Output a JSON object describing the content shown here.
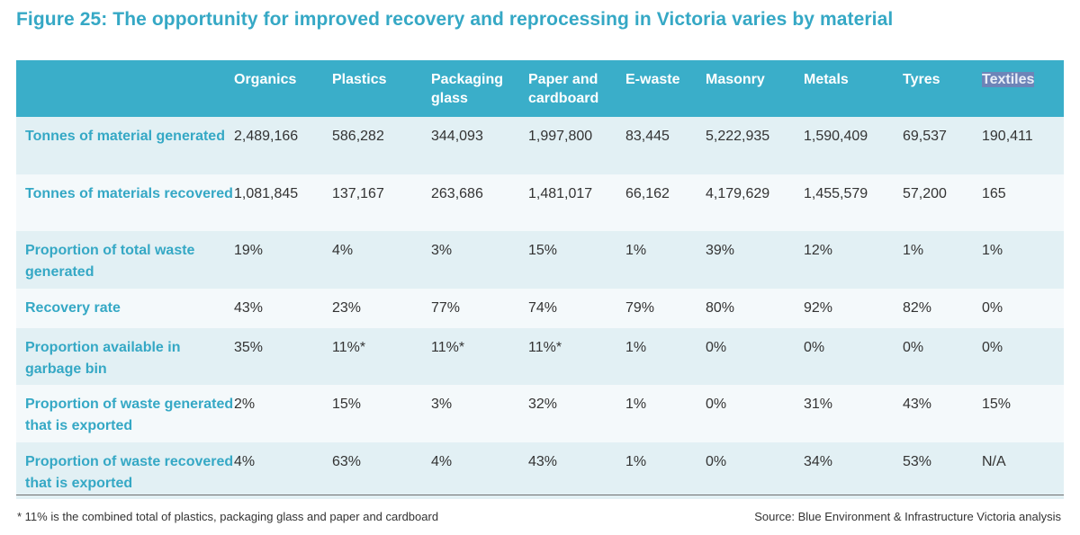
{
  "figure": {
    "title": "Figure 25: The opportunity for improved recovery and reprocessing in Victoria varies by material"
  },
  "table": {
    "columns": [
      "Organics",
      "Plastics",
      "Packaging glass",
      "Paper and cardboard",
      "E-waste",
      "Masonry",
      "Metals",
      "Tyres",
      "Textiles"
    ],
    "rows": [
      {
        "label": "Tonnes of material generated",
        "values": [
          "2,489,166",
          "586,282",
          "344,093",
          "1,997,800",
          "83,445",
          "5,222,935",
          "1,590,409",
          "69,537",
          "190,411"
        ]
      },
      {
        "label": "Tonnes of materials recovered",
        "values": [
          "1,081,845",
          "137,167",
          "263,686",
          "1,481,017",
          "66,162",
          "4,179,629",
          "1,455,579",
          "57,200",
          "165"
        ]
      },
      {
        "label": "Proportion of total waste generated",
        "values": [
          "19%",
          "4%",
          "3%",
          "15%",
          "1%",
          "39%",
          "12%",
          "1%",
          "1%"
        ]
      },
      {
        "label": "Recovery rate",
        "values": [
          "43%",
          "23%",
          "77%",
          "74%",
          "79%",
          "80%",
          "92%",
          "82%",
          "0%"
        ]
      },
      {
        "label": "Proportion available in garbage bin",
        "values": [
          "35%",
          "11%*",
          "11%*",
          "11%*",
          "1%",
          "0%",
          "0%",
          "0%",
          "0%"
        ]
      },
      {
        "label": "Proportion of waste generated that is exported",
        "values": [
          "2%",
          "15%",
          "3%",
          "32%",
          "1%",
          "0%",
          "31%",
          "43%",
          "15%"
        ]
      },
      {
        "label": "Proportion of waste recovered that is exported",
        "values": [
          "4%",
          "63%",
          "4%",
          "43%",
          "1%",
          "0%",
          "34%",
          "53%",
          "N/A"
        ]
      }
    ]
  },
  "footer": {
    "footnote": "* 11% is the combined total of plastics, packaging glass and paper and cardboard",
    "source": "Source: Blue Environment & Infrastructure Victoria analysis"
  },
  "colors": {
    "title_accent": "#35a8c5",
    "header_background": "#3aaec9",
    "row_band_dark": "#e2f0f4",
    "row_band_light": "#f4f9fb",
    "text_highlight": "#6d84b8"
  }
}
